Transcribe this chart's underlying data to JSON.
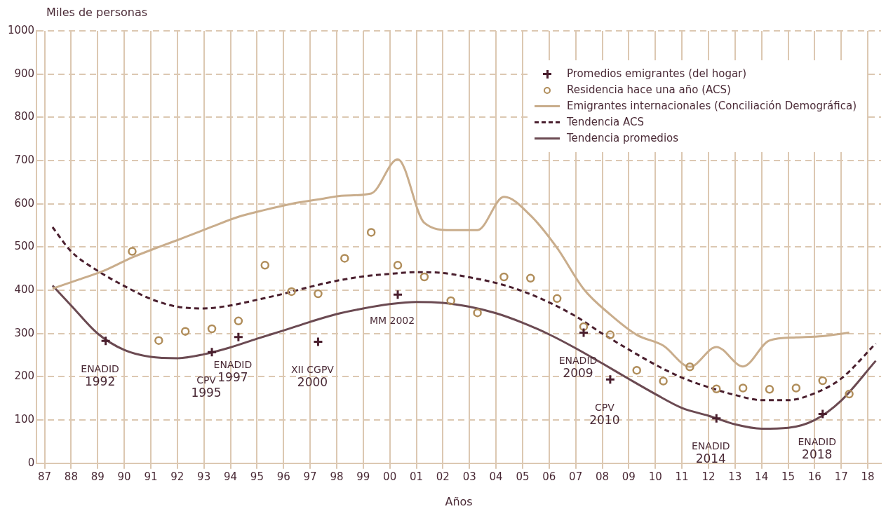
{
  "chart_data": {
    "type": "line",
    "xlabel": "Años",
    "ylabel": "Miles de personas",
    "xlim": [
      1986.7,
      2018.5
    ],
    "ylim": [
      0,
      1000
    ],
    "xticks": [
      {
        "value": 1987,
        "label": "87"
      },
      {
        "value": 1988,
        "label": "88"
      },
      {
        "value": 1989,
        "label": "89"
      },
      {
        "value": 1990,
        "label": "90"
      },
      {
        "value": 1991,
        "label": "91"
      },
      {
        "value": 1992,
        "label": "92"
      },
      {
        "value": 1993,
        "label": "93"
      },
      {
        "value": 1994,
        "label": "94"
      },
      {
        "value": 1995,
        "label": "95"
      },
      {
        "value": 1996,
        "label": "96"
      },
      {
        "value": 1997,
        "label": "97"
      },
      {
        "value": 1998,
        "label": "98"
      },
      {
        "value": 1999,
        "label": "99"
      },
      {
        "value": 2000,
        "label": "00"
      },
      {
        "value": 2001,
        "label": "01"
      },
      {
        "value": 2002,
        "label": "02"
      },
      {
        "value": 2003,
        "label": "03"
      },
      {
        "value": 2004,
        "label": "04"
      },
      {
        "value": 2005,
        "label": "05"
      },
      {
        "value": 2006,
        "label": "06"
      },
      {
        "value": 2007,
        "label": "07"
      },
      {
        "value": 2008,
        "label": "08"
      },
      {
        "value": 2009,
        "label": "09"
      },
      {
        "value": 2010,
        "label": "10"
      },
      {
        "value": 2011,
        "label": "11"
      },
      {
        "value": 2012,
        "label": "12"
      },
      {
        "value": 2013,
        "label": "13"
      },
      {
        "value": 2014,
        "label": "14"
      },
      {
        "value": 2015,
        "label": "15"
      },
      {
        "value": 2016,
        "label": "16"
      },
      {
        "value": 2017,
        "label": "17"
      },
      {
        "value": 2018,
        "label": "18"
      }
    ],
    "yticks": [
      0,
      100,
      200,
      300,
      400,
      500,
      600,
      700,
      800,
      900,
      1000
    ],
    "grid": true,
    "legend": "top right",
    "series": [
      {
        "name": "Promedios emigrantes (del hogar)",
        "type": "scatter",
        "marker": "cross",
        "color": "#4a1f2e",
        "x": [
          1989.3,
          1993.3,
          1994.3,
          1997.3,
          2000.3,
          2007.3,
          2008.3,
          2012.3,
          2016.3
        ],
        "values": [
          283,
          257,
          292,
          281,
          390,
          302,
          194,
          104,
          114
        ]
      },
      {
        "name": "Residencia hace una año (ACS)",
        "type": "scatter",
        "marker": "circle",
        "color": "#b08d5a",
        "x": [
          1990.3,
          1991.3,
          1992.3,
          1993.3,
          1994.3,
          1995.3,
          1996.3,
          1997.3,
          1998.3,
          1999.3,
          2000.3,
          2001.3,
          2002.3,
          2003.3,
          2004.3,
          2005.3,
          2006.3,
          2007.3,
          2008.3,
          2009.3,
          2010.3,
          2011.3,
          2012.3,
          2013.3,
          2014.3,
          2015.3,
          2016.3,
          2017.3
        ],
        "values": [
          490,
          284,
          305,
          311,
          329,
          458,
          397,
          392,
          474,
          534,
          458,
          431,
          376,
          348,
          431,
          428,
          381,
          316,
          297,
          215,
          190,
          223,
          172,
          174,
          171,
          174,
          191,
          160
        ]
      },
      {
        "name": "Emigrantes internacionales (Conciliación Demográfica)",
        "type": "line",
        "marker": "none",
        "line_style": "solid",
        "color": "#c9ad8c",
        "x": [
          1987.3,
          1988.3,
          1989.3,
          1990.3,
          1991.3,
          1992.3,
          1993.3,
          1994.3,
          1995.3,
          1996.3,
          1997.3,
          1998.3,
          1999.3,
          2000.3,
          2001.3,
          2002.3,
          2003.3,
          2004.3,
          2005.3,
          2006.3,
          2007.3,
          2008.3,
          2009.3,
          2010.3,
          2011.3,
          2012.3,
          2013.3,
          2014.3,
          2015.3,
          2016.3,
          2017.3
        ],
        "values": [
          404,
          425,
          447,
          476,
          500,
          523,
          547,
          570,
          586,
          600,
          610,
          619,
          624,
          703,
          556,
          539,
          539,
          616,
          573,
          498,
          403,
          344,
          297,
          272,
          223,
          269,
          224,
          284,
          291,
          294,
          302
        ]
      },
      {
        "name": "Tendencia ACS",
        "type": "line",
        "marker": "none",
        "line_style": "dashed",
        "color": "#4a1f2e",
        "x": [
          1987.3,
          1988,
          1989,
          1990,
          1991,
          1992,
          1993,
          1994,
          1995,
          1996,
          1997,
          1998,
          1999,
          2000,
          2001,
          2002,
          2003,
          2004,
          2005,
          2006,
          2007,
          2008,
          2009,
          2010,
          2011,
          2012,
          2013,
          2014,
          2015,
          2016,
          2017,
          2018.3
        ],
        "values": [
          546,
          490,
          445,
          410,
          380,
          362,
          358,
          365,
          378,
          392,
          408,
          422,
          432,
          438,
          442,
          440,
          430,
          417,
          398,
          372,
          340,
          300,
          263,
          228,
          198,
          176,
          158,
          146,
          146,
          162,
          196,
          277
        ]
      },
      {
        "name": "Tendencia promedios",
        "type": "line",
        "marker": "none",
        "line_style": "solid",
        "color": "#6b4a52",
        "x": [
          1987.3,
          1988,
          1989,
          1990,
          1991,
          1992,
          1993,
          1994,
          1995,
          1996,
          1997,
          1998,
          1999,
          2000,
          2001,
          2002,
          2003,
          2004,
          2005,
          2006,
          2007,
          2008,
          2009,
          2010,
          2011,
          2012,
          2013,
          2014,
          2015,
          2016,
          2017,
          2018.3
        ],
        "values": [
          411,
          365,
          300,
          262,
          246,
          243,
          252,
          268,
          288,
          307,
          327,
          345,
          358,
          368,
          373,
          371,
          362,
          347,
          325,
          298,
          266,
          231,
          195,
          160,
          128,
          110,
          90,
          80,
          82,
          100,
          145,
          237
        ]
      }
    ],
    "annotations": [
      {
        "text": "ENADID\n1992",
        "x": 1989.3,
        "y": 283
      },
      {
        "text": "CPV\n1995",
        "x": 1993.3,
        "y": 257
      },
      {
        "text": "ENADID\n1997",
        "x": 1994.3,
        "y": 292
      },
      {
        "text": "XII CGPV\n2000",
        "x": 1997.3,
        "y": 281
      },
      {
        "text": "MM 2002",
        "x": 2000.3,
        "y": 390
      },
      {
        "text": "ENADID\n2009",
        "x": 2007.3,
        "y": 302
      },
      {
        "text": "CPV\n2010",
        "x": 2008.3,
        "y": 194
      },
      {
        "text": "ENADID\n2014",
        "x": 2012.3,
        "y": 104
      },
      {
        "text": "ENADID\n2018",
        "x": 2016.3,
        "y": 114
      }
    ]
  }
}
